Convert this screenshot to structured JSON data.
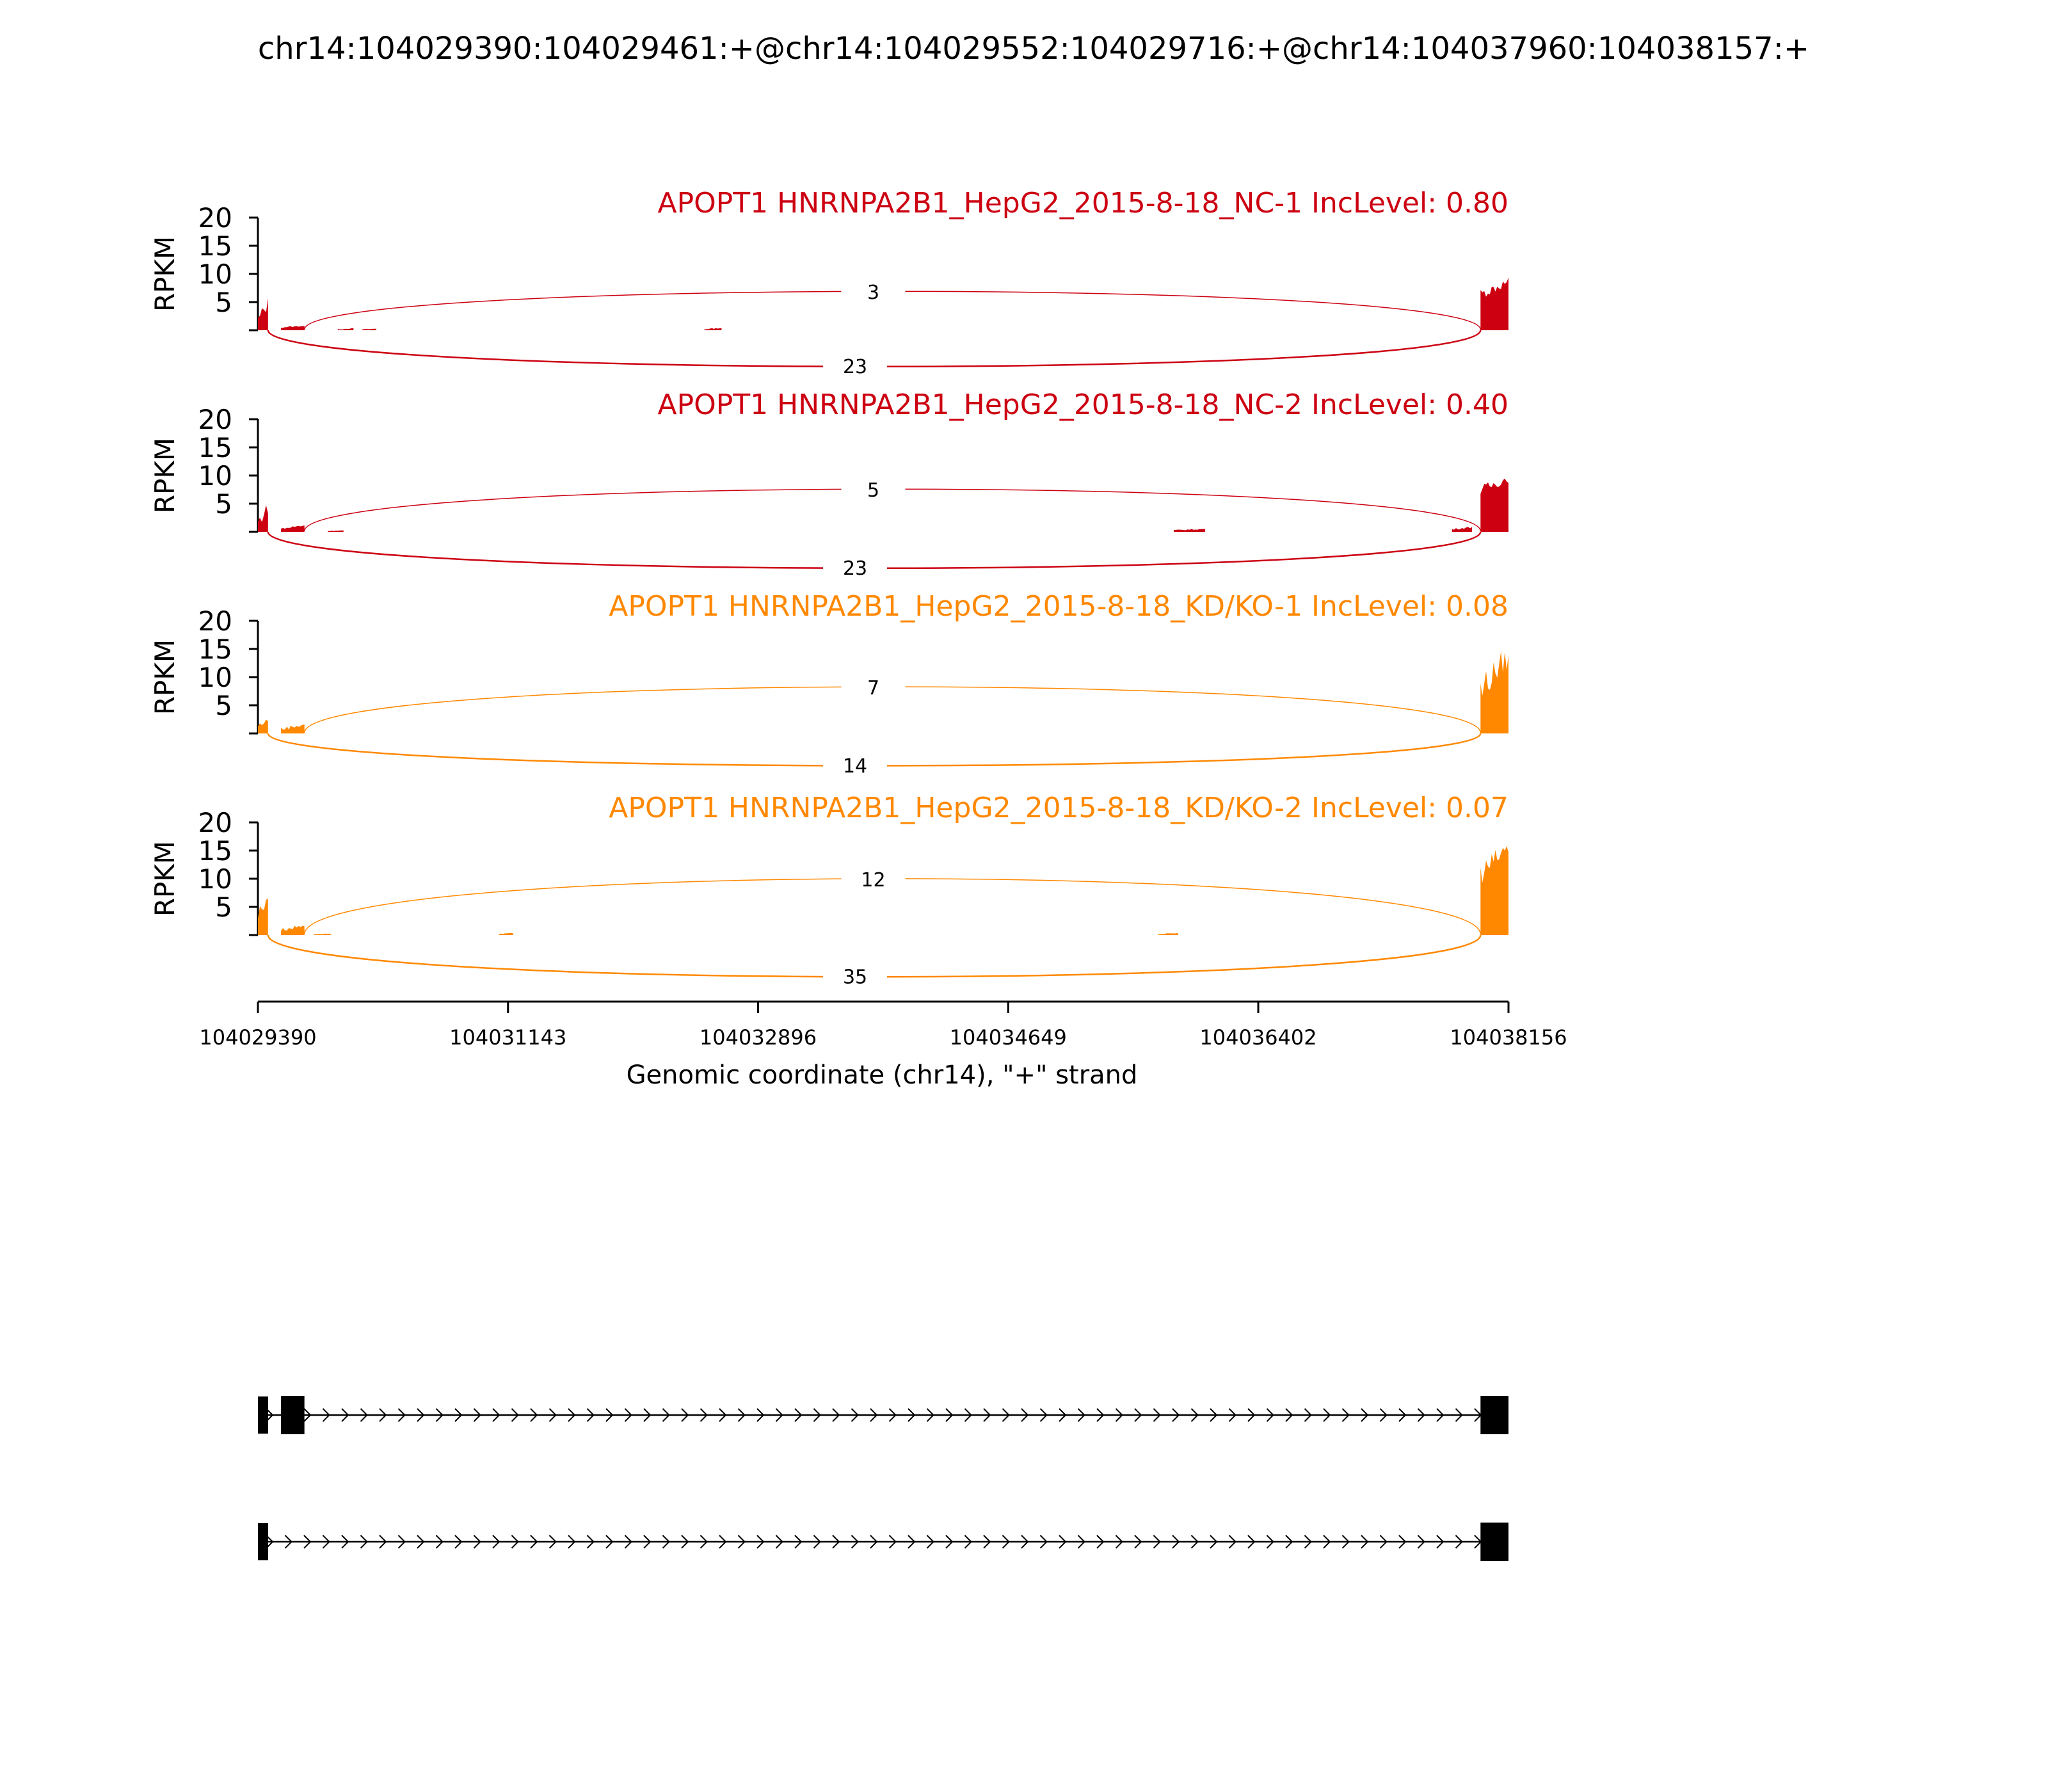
{
  "title": "chr14:104029390:104029461:+@chr14:104029552:104029716:+@chr14:104037960:104038157:+",
  "colors": {
    "nc": "#cc0011",
    "kd": "#ff8800",
    "axis": "#000000",
    "gene": "#000000"
  },
  "chart_data": {
    "type": "area",
    "title": "chr14:104029390:104029461:+@chr14:104029552:104029716:+@chr14:104037960:104038157:+",
    "xlabel": "Genomic coordinate (chr14), \"+\" strand",
    "ylabel": "RPKM",
    "xlim": [
      104029390,
      104038156
    ],
    "ylim": [
      0,
      20
    ],
    "x_ticks": [
      104029390,
      104031143,
      104032896,
      104034649,
      104036402,
      104038156
    ],
    "y_ticks": [
      5,
      10,
      15,
      20
    ],
    "series": [
      {
        "name": "APOPT1 HNRNPA2B1_HepG2_2015-8-18_NC-1",
        "label": "APOPT1 HNRNPA2B1_HepG2_2015-8-18_NC-1 IncLevel: 0.80",
        "inc_level": 0.8,
        "color": "#cc0011",
        "coverage": [
          {
            "start": 104029390,
            "end": 104029461,
            "min": 0.5,
            "max": 6.0
          },
          {
            "start": 104029552,
            "end": 104029716,
            "min": 0.4,
            "max": 0.9
          },
          {
            "start": 104029950,
            "end": 104030060,
            "min": 0.1,
            "max": 0.4
          },
          {
            "start": 104030120,
            "end": 104030220,
            "min": 0.1,
            "max": 0.3
          },
          {
            "start": 104032520,
            "end": 104032640,
            "min": 0.1,
            "max": 0.5
          },
          {
            "start": 104037960,
            "end": 104038156,
            "min": 5.5,
            "max": 9.5
          }
        ],
        "junctions": [
          {
            "from": 104029461,
            "to": 104037960,
            "count": 23,
            "side": "below"
          },
          {
            "from": 104029716,
            "to": 104037960,
            "count": 3,
            "side": "above"
          }
        ]
      },
      {
        "name": "APOPT1 HNRNPA2B1_HepG2_2015-8-18_NC-2",
        "label": "APOPT1 HNRNPA2B1_HepG2_2015-8-18_NC-2 IncLevel: 0.40",
        "inc_level": 0.4,
        "color": "#cc0011",
        "coverage": [
          {
            "start": 104029390,
            "end": 104029461,
            "min": 0.5,
            "max": 5.5
          },
          {
            "start": 104029552,
            "end": 104029716,
            "min": 0.3,
            "max": 1.4
          },
          {
            "start": 104029880,
            "end": 104029990,
            "min": 0.1,
            "max": 0.3
          },
          {
            "start": 104035810,
            "end": 104036030,
            "min": 0.2,
            "max": 0.6
          },
          {
            "start": 104037760,
            "end": 104037900,
            "min": 0.3,
            "max": 1.0
          },
          {
            "start": 104037960,
            "end": 104038156,
            "min": 6.5,
            "max": 10.5
          }
        ],
        "junctions": [
          {
            "from": 104029461,
            "to": 104037960,
            "count": 23,
            "side": "below"
          },
          {
            "from": 104029716,
            "to": 104037960,
            "count": 5,
            "side": "above"
          }
        ]
      },
      {
        "name": "APOPT1 HNRNPA2B1_HepG2_2015-8-18_KD/KO-1",
        "label": "APOPT1 HNRNPA2B1_HepG2_2015-8-18_KD/KO-1 IncLevel: 0.08",
        "inc_level": 0.08,
        "color": "#ff8800",
        "coverage": [
          {
            "start": 104029390,
            "end": 104029461,
            "min": 0.8,
            "max": 3.0
          },
          {
            "start": 104029552,
            "end": 104029716,
            "min": 0.4,
            "max": 2.0
          },
          {
            "start": 104037960,
            "end": 104038156,
            "min": 5.0,
            "max": 16.5
          }
        ],
        "junctions": [
          {
            "from": 104029461,
            "to": 104037960,
            "count": 14,
            "side": "below"
          },
          {
            "from": 104029716,
            "to": 104037960,
            "count": 7,
            "side": "above"
          }
        ]
      },
      {
        "name": "APOPT1 HNRNPA2B1_HepG2_2015-8-18_KD/KO-2",
        "label": "APOPT1 HNRNPA2B1_HepG2_2015-8-18_KD/KO-2 IncLevel: 0.07",
        "inc_level": 0.07,
        "color": "#ff8800",
        "coverage": [
          {
            "start": 104029390,
            "end": 104029461,
            "min": 2.0,
            "max": 8.5
          },
          {
            "start": 104029552,
            "end": 104029716,
            "min": 0.6,
            "max": 2.0
          },
          {
            "start": 104029780,
            "end": 104029900,
            "min": 0.1,
            "max": 0.3
          },
          {
            "start": 104031080,
            "end": 104031180,
            "min": 0.1,
            "max": 0.4
          },
          {
            "start": 104035700,
            "end": 104035840,
            "min": 0.1,
            "max": 0.4
          },
          {
            "start": 104037960,
            "end": 104038156,
            "min": 9.0,
            "max": 17.5
          }
        ],
        "junctions": [
          {
            "from": 104029461,
            "to": 104037960,
            "count": 35,
            "side": "below"
          },
          {
            "from": 104029716,
            "to": 104037960,
            "count": 12,
            "side": "above"
          }
        ]
      }
    ],
    "isoforms": [
      {
        "exons": [
          [
            104029390,
            104029461
          ],
          [
            104029552,
            104029716
          ],
          [
            104037960,
            104038156
          ]
        ],
        "strand": "+"
      },
      {
        "exons": [
          [
            104029390,
            104029461
          ],
          [
            104037960,
            104038156
          ]
        ],
        "strand": "+"
      }
    ]
  }
}
